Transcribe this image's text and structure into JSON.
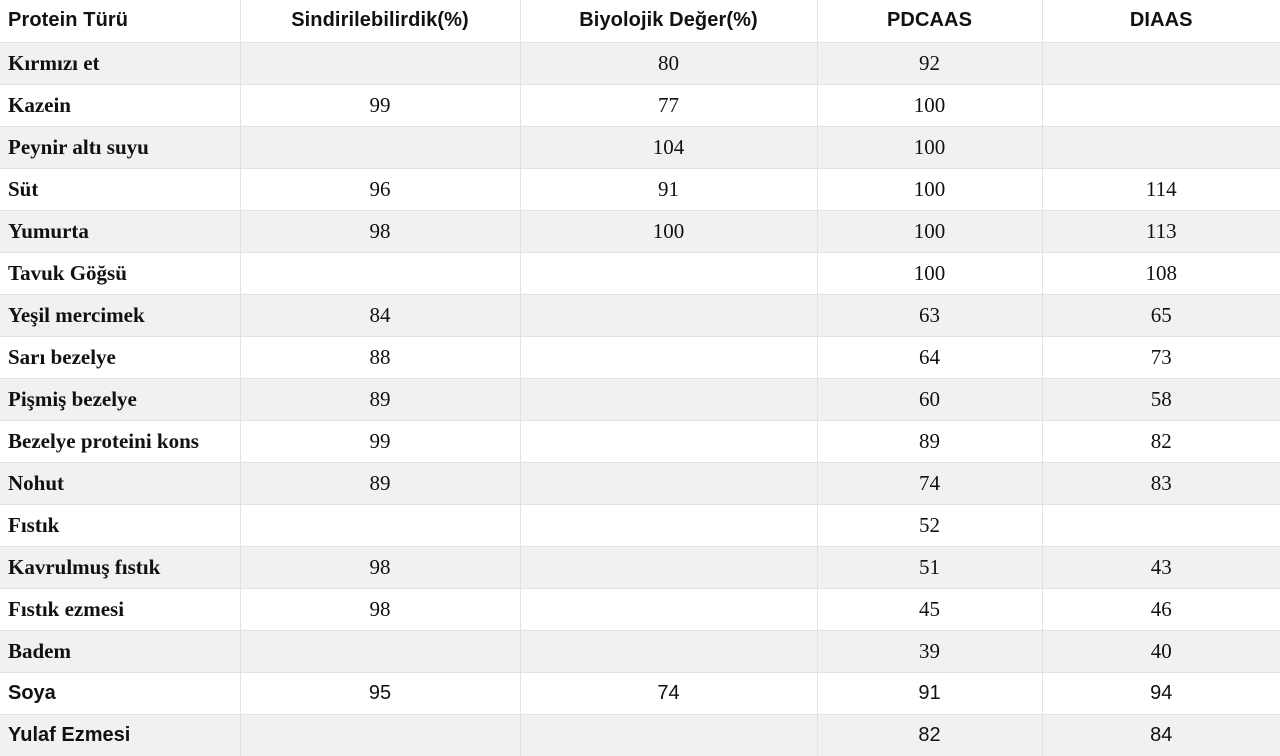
{
  "colors": {
    "stripe": "#f1f1f2",
    "row_white": "#ffffff",
    "border": "#e2e2e2",
    "text": "#111111"
  },
  "table": {
    "columns": [
      "Protein Türü",
      "Sindirilebilirdik(%)",
      "Biyolojik Değer(%)",
      "PDCAAS",
      "DIAAS"
    ],
    "rows": [
      {
        "label": "Kırmızı et",
        "values": [
          "",
          "80",
          "92",
          ""
        ]
      },
      {
        "label": "Kazein",
        "values": [
          "99",
          "77",
          "100",
          ""
        ]
      },
      {
        "label": "Peynir altı suyu",
        "values": [
          "",
          "104",
          "100",
          ""
        ]
      },
      {
        "label": "Süt",
        "values": [
          "96",
          "91",
          "100",
          "114"
        ]
      },
      {
        "label": "Yumurta",
        "values": [
          "98",
          "100",
          "100",
          "113"
        ]
      },
      {
        "label": "Tavuk Göğsü",
        "values": [
          "",
          "",
          "100",
          "108"
        ]
      },
      {
        "label": "Yeşil mercimek",
        "values": [
          "84",
          "",
          "63",
          "65"
        ]
      },
      {
        "label": "Sarı bezelye",
        "values": [
          "88",
          "",
          "64",
          "73"
        ]
      },
      {
        "label": "Pişmiş bezelye",
        "values": [
          "89",
          "",
          "60",
          "58"
        ]
      },
      {
        "label": "Bezelye proteini kons",
        "values": [
          "99",
          "",
          "89",
          "82"
        ]
      },
      {
        "label": "Nohut",
        "values": [
          "89",
          "",
          "74",
          "83"
        ]
      },
      {
        "label": "Fıstık",
        "values": [
          "",
          "",
          "52",
          ""
        ]
      },
      {
        "label": "Kavrulmuş fıstık",
        "values": [
          "98",
          "",
          "51",
          "43"
        ]
      },
      {
        "label": "Fıstık ezmesi",
        "values": [
          "98",
          "",
          "45",
          "46"
        ]
      },
      {
        "label": "Badem",
        "values": [
          "",
          "",
          "39",
          "40"
        ]
      },
      {
        "label": "Soya",
        "values": [
          "95",
          "74",
          "91",
          "94"
        ],
        "variant": "sans"
      },
      {
        "label": "Yulaf Ezmesi",
        "values": [
          "",
          "",
          "82",
          "84"
        ],
        "variant": "sans"
      }
    ]
  }
}
